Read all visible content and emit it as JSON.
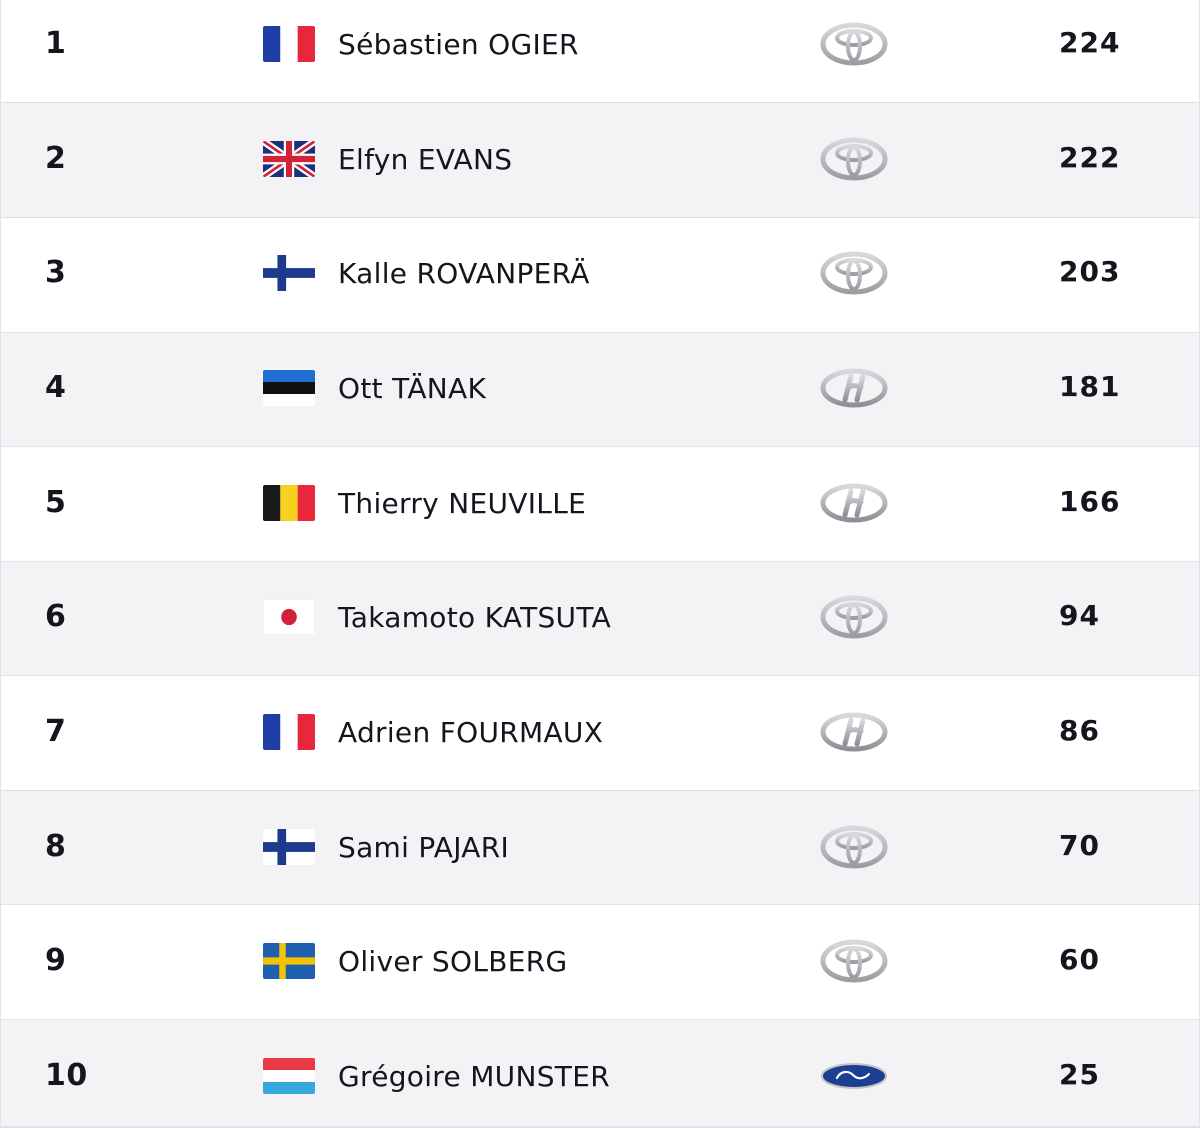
{
  "standings": [
    {
      "position": "1",
      "flag": "france-flag",
      "driver": "Sébastien OGIER",
      "team_logo": "toyota-logo",
      "points": "224"
    },
    {
      "position": "2",
      "flag": "united-kingdom-flag",
      "driver": "Elfyn EVANS",
      "team_logo": "toyota-logo",
      "points": "222"
    },
    {
      "position": "3",
      "flag": "finland-flag",
      "driver": "Kalle ROVANPERÄ",
      "team_logo": "toyota-logo",
      "points": "203"
    },
    {
      "position": "4",
      "flag": "estonia-flag",
      "driver": "Ott TÄNAK",
      "team_logo": "hyundai-logo",
      "points": "181"
    },
    {
      "position": "5",
      "flag": "belgium-flag",
      "driver": "Thierry NEUVILLE",
      "team_logo": "hyundai-logo",
      "points": "166"
    },
    {
      "position": "6",
      "flag": "japan-flag",
      "driver": "Takamoto KATSUTA",
      "team_logo": "toyota-logo",
      "points": "94"
    },
    {
      "position": "7",
      "flag": "france-flag",
      "driver": "Adrien FOURMAUX",
      "team_logo": "hyundai-logo",
      "points": "86"
    },
    {
      "position": "8",
      "flag": "finland-flag",
      "driver": "Sami PAJARI",
      "team_logo": "toyota-logo",
      "points": "70"
    },
    {
      "position": "9",
      "flag": "sweden-flag",
      "driver": "Oliver SOLBERG",
      "team_logo": "toyota-logo",
      "points": "60"
    },
    {
      "position": "10",
      "flag": "luxembourg-flag",
      "driver": "Grégoire MUNSTER",
      "team_logo": "ford-logo",
      "points": "25"
    }
  ],
  "colors": {
    "text": "#15151e",
    "row_alt_background": "#f3f3f6",
    "divider": "#e2e2ea",
    "logo_silver": "#b8b8bc",
    "ford_blue": "#1c3f94"
  }
}
